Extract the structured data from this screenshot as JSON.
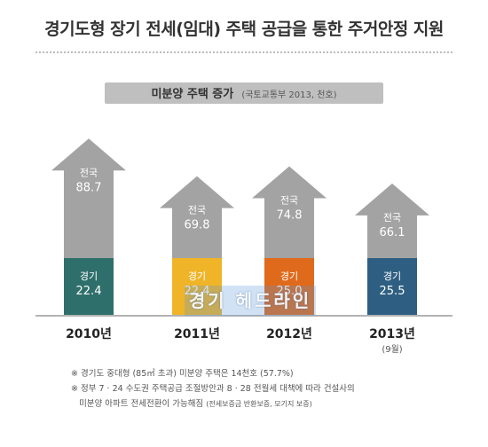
{
  "title": "경기도형 장기 전세(임대) 주택 공급을 통한 주거안정 지원",
  "subtitle": {
    "main": "미분양 주택 증가",
    "source": "(국토교통부 2013, 천호)"
  },
  "chart_data": {
    "type": "bar",
    "title": "미분양 주택 증가",
    "categories": [
      "2010년",
      "2011년",
      "2012년",
      "2013년"
    ],
    "category_notes": [
      "",
      "",
      "",
      "(9월)"
    ],
    "series": [
      {
        "name": "전국",
        "values": [
          88.7,
          69.8,
          74.8,
          66.1
        ]
      },
      {
        "name": "경기",
        "values": [
          22.4,
          22.4,
          25.0,
          25.5
        ]
      }
    ],
    "value_labels": {
      "전국": [
        "88.7",
        "69.8",
        "74.8",
        "66.1"
      ],
      "경기": [
        "22.4",
        "22.4",
        "25.0",
        "25.5"
      ]
    },
    "units": "천호",
    "colors": {
      "national": "#a3a3a3",
      "gyeonggi": [
        "#2f6f6b",
        "#f0b429",
        "#e06a1b",
        "#2e5f82"
      ]
    }
  },
  "watermark": "경기 헤드라인",
  "notes": {
    "note1": "※ 경기도 중대형 (85㎡ 초과) 미분양 주택은 14천호 (57.7%)",
    "note2": "※ 정부 7 · 24 수도권 주택공급 조절방안과 8 · 28 전월세 대책에 따라 건설사의",
    "note3_main": "미분양 아파트 전세전환이 가능해짐",
    "note3_small": "(전세보증금 반환보증, 모기지 보증)"
  }
}
